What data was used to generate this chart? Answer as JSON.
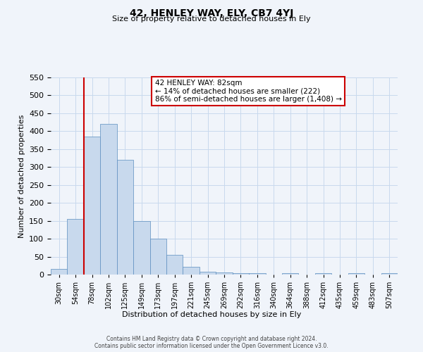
{
  "title": "42, HENLEY WAY, ELY, CB7 4YJ",
  "subtitle": "Size of property relative to detached houses in Ely",
  "xlabel": "Distribution of detached houses by size in Ely",
  "ylabel": "Number of detached properties",
  "bin_labels": [
    "30sqm",
    "54sqm",
    "78sqm",
    "102sqm",
    "125sqm",
    "149sqm",
    "173sqm",
    "197sqm",
    "221sqm",
    "245sqm",
    "269sqm",
    "292sqm",
    "316sqm",
    "340sqm",
    "364sqm",
    "388sqm",
    "412sqm",
    "435sqm",
    "459sqm",
    "483sqm",
    "507sqm"
  ],
  "bar_heights": [
    15,
    155,
    385,
    420,
    320,
    150,
    100,
    55,
    22,
    8,
    5,
    3,
    3,
    0,
    3,
    0,
    3,
    0,
    3,
    0,
    3
  ],
  "bar_color": "#c8d9ed",
  "bar_edge_color": "#5b8dbf",
  "vline_color": "#cc0000",
  "annotation_title": "42 HENLEY WAY: 82sqm",
  "annotation_line2": "← 14% of detached houses are smaller (222)",
  "annotation_line3": "86% of semi-detached houses are larger (1,408) →",
  "annotation_box_color": "#ffffff",
  "annotation_box_edge": "#cc0000",
  "ylim": [
    0,
    550
  ],
  "yticks": [
    0,
    50,
    100,
    150,
    200,
    250,
    300,
    350,
    400,
    450,
    500,
    550
  ],
  "grid_color": "#c8d9ed",
  "background_color": "#f0f4fa",
  "footer1": "Contains HM Land Registry data © Crown copyright and database right 2024.",
  "footer2": "Contains public sector information licensed under the Open Government Licence v3.0."
}
